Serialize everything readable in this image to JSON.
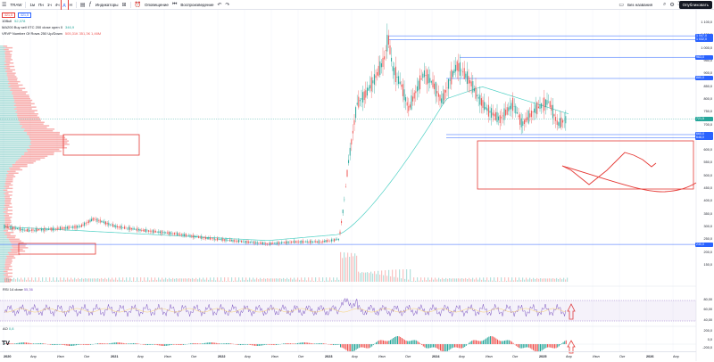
{
  "toolbar": {
    "symbol": "TRAW",
    "intervals": [
      "1м",
      "Пн",
      "1ч",
      "4ч",
      "Д",
      "Н"
    ],
    "items": [
      "Индикаторы",
      "Оповещение",
      "Воспроизведение"
    ],
    "layout": "Без названия",
    "publish": "Опубликовать"
  },
  "legend": {
    "sell_price": "321,5",
    "buy_price": "321,5",
    "row1_label": "10Bull",
    "row1_value": "52,378",
    "row2_label": "MA200 Buy sell 0TC 200 close open 0",
    "row2_value": "346,9",
    "row3_label": "VRVP Number Of Rows 250 Up/Down",
    "row3_values": "505,31К   351,3К   1,46М"
  },
  "panels": {
    "rsi_label": "RSI 14 close",
    "rsi_value": "55,36",
    "ao_label": "AO",
    "ao_value": "0,8"
  },
  "price_axis": [
    "1 100,0",
    "1 050,0",
    "1 000,0",
    "950,0",
    "900,0",
    "850,0",
    "800,0",
    "750,0",
    "700,0",
    "650,0",
    "600,0",
    "550,0",
    "500,0",
    "450,0",
    "400,0",
    "350,0",
    "300,0",
    "250,0",
    "200,0",
    "150,0"
  ],
  "price_tags": [
    {
      "label": "1 047,0",
      "color": "#2962ff"
    },
    {
      "label": "1 032,0",
      "color": "#2962ff"
    },
    {
      "label": "963,0",
      "color": "#2962ff"
    },
    {
      "label": "880,0",
      "color": "#2962ff"
    },
    {
      "label": "721,5",
      "color": "#26a69a"
    },
    {
      "label": "660,0",
      "color": "#2962ff"
    },
    {
      "label": "648,0",
      "color": "#2962ff"
    },
    {
      "label": "230,0",
      "color": "#2962ff"
    }
  ],
  "rsi_axis": [
    "80,00",
    "60,00",
    "40,00"
  ],
  "ao_axis": [
    "200,0",
    "0,0",
    "-200,0"
  ],
  "x_axis": [
    "2020",
    "Апр",
    "Июл",
    "Окт",
    "2021",
    "Апр",
    "Июл",
    "Окт",
    "2022",
    "Апр",
    "Июл",
    "Окт",
    "2023",
    "Апр",
    "Июл",
    "Окт",
    "2024",
    "Апр",
    "Июл",
    "Окт",
    "2025",
    "Апр",
    "Июл",
    "Окт",
    "2026",
    "Апр"
  ],
  "colors": {
    "up": "#26a69a",
    "down": "#ef5350",
    "annotation": "#e53935",
    "level": "#2962ff"
  }
}
